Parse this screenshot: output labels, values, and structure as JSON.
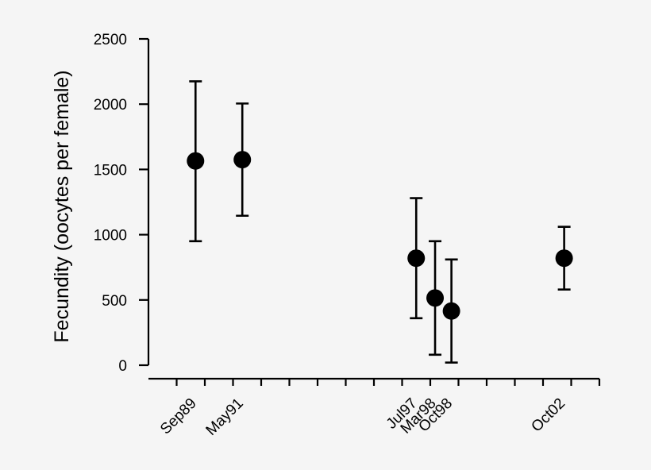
{
  "chart_data": {
    "type": "scatter",
    "title": "",
    "xlabel": "",
    "ylabel": "Fecundity (oocytes per female)",
    "ylim": [
      0,
      2500
    ],
    "yticks": [
      0,
      500,
      1000,
      1500,
      2000,
      2500
    ],
    "xlim": [
      1988,
      2004
    ],
    "xtick_positions": [
      1989,
      1990,
      1991,
      1992,
      1993,
      1994,
      1995,
      1996,
      1997,
      1998,
      1999,
      2000,
      2001,
      2002,
      2003,
      2004
    ],
    "xtick_labels": [
      {
        "label": "Sep89",
        "x": 1989.67
      },
      {
        "label": "May91",
        "x": 1991.33
      },
      {
        "label": "Jul97",
        "x": 1997.5
      },
      {
        "label": "Mar98",
        "x": 1998.17
      },
      {
        "label": "Oct98",
        "x": 1998.75
      },
      {
        "label": "Oct02",
        "x": 2002.75
      }
    ],
    "grid": false,
    "series": [
      {
        "points": [
          {
            "x": 1989.67,
            "y": 1565,
            "lower": 950,
            "upper": 2175
          },
          {
            "x": 1991.33,
            "y": 1575,
            "lower": 1145,
            "upper": 2005
          },
          {
            "x": 1997.5,
            "y": 820,
            "lower": 360,
            "upper": 1280
          },
          {
            "x": 1998.17,
            "y": 515,
            "lower": 80,
            "upper": 950
          },
          {
            "x": 1998.75,
            "y": 415,
            "lower": 20,
            "upper": 810
          },
          {
            "x": 2002.75,
            "y": 820,
            "lower": 580,
            "upper": 1060
          }
        ]
      }
    ]
  }
}
